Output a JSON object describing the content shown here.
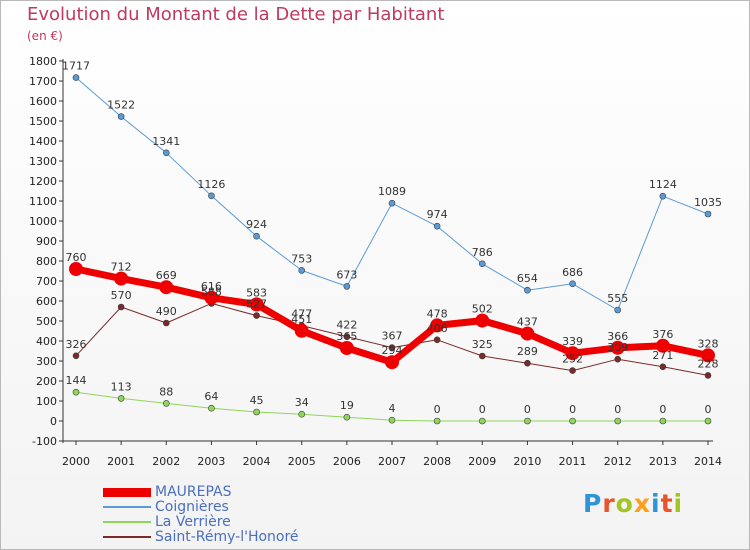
{
  "title": "Evolution du Montant de la Dette par Habitant",
  "unit_label": "(en €)",
  "brand": [
    "P",
    "r",
    "o",
    "x",
    "i",
    "t",
    "i"
  ],
  "brand_colors": [
    "#2f93d8",
    "#e9552b",
    "#a2c520",
    "#ff9f1a",
    "#2f93d8",
    "#e9552b",
    "#a2c520"
  ],
  "chart_data": {
    "type": "line",
    "x": [
      "2000",
      "2001",
      "2002",
      "2003",
      "2004",
      "2005",
      "2006",
      "2007",
      "2008",
      "2009",
      "2010",
      "2011",
      "2012",
      "2013",
      "2014"
    ],
    "ylim": [
      -100,
      1800
    ],
    "yticks": [
      -100,
      0,
      100,
      200,
      300,
      400,
      500,
      600,
      700,
      800,
      900,
      1000,
      1100,
      1200,
      1300,
      1400,
      1500,
      1600,
      1700,
      1800
    ],
    "grid": false,
    "legend_position": "bottom-left",
    "series": [
      {
        "name": "MAUREPAS",
        "color": "#ee0000",
        "width": 7,
        "marker": 7,
        "values": [
          760,
          712,
          669,
          616,
          583,
          451,
          365,
          294,
          478,
          502,
          437,
          339,
          366,
          376,
          328
        ],
        "labels": [
          "760",
          "712",
          "669",
          "616",
          "583",
          "451",
          "365",
          "294",
          "478",
          "502",
          "437",
          "339",
          "366",
          "376",
          "328"
        ]
      },
      {
        "name": "Coignières",
        "color": "#5b9bd5",
        "width": 1,
        "marker": 3,
        "values": [
          1717,
          1522,
          1341,
          1126,
          924,
          753,
          673,
          1089,
          974,
          786,
          654,
          686,
          555,
          1124,
          1035
        ],
        "labels": [
          "1717",
          "1522",
          "1341",
          "1126",
          "924",
          "753",
          "673",
          "1089",
          "974",
          "786",
          "654",
          "686",
          "555",
          "1124",
          "1035"
        ]
      },
      {
        "name": "La Verrière",
        "color": "#8ed65a",
        "width": 1,
        "marker": 3,
        "values": [
          144,
          113,
          88,
          64,
          45,
          34,
          19,
          4,
          0,
          0,
          0,
          0,
          0,
          0,
          0
        ],
        "labels": [
          "144",
          "113",
          "88",
          "64",
          "45",
          "34",
          "19",
          "4",
          "0",
          "0",
          "0",
          "0",
          "0",
          "0",
          "0"
        ]
      },
      {
        "name": "Saint-Rémy-l'Honoré",
        "color": "#7a2a2a",
        "width": 1,
        "marker": 3,
        "values": [
          326,
          570,
          490,
          588,
          527,
          477,
          422,
          367,
          406,
          325,
          289,
          252,
          309,
          271,
          228
        ],
        "labels": [
          "326",
          "570",
          "490",
          "588",
          "527",
          "477",
          "422",
          "367",
          "406",
          "325",
          "289",
          "252",
          "309",
          "271",
          "228"
        ]
      }
    ]
  }
}
